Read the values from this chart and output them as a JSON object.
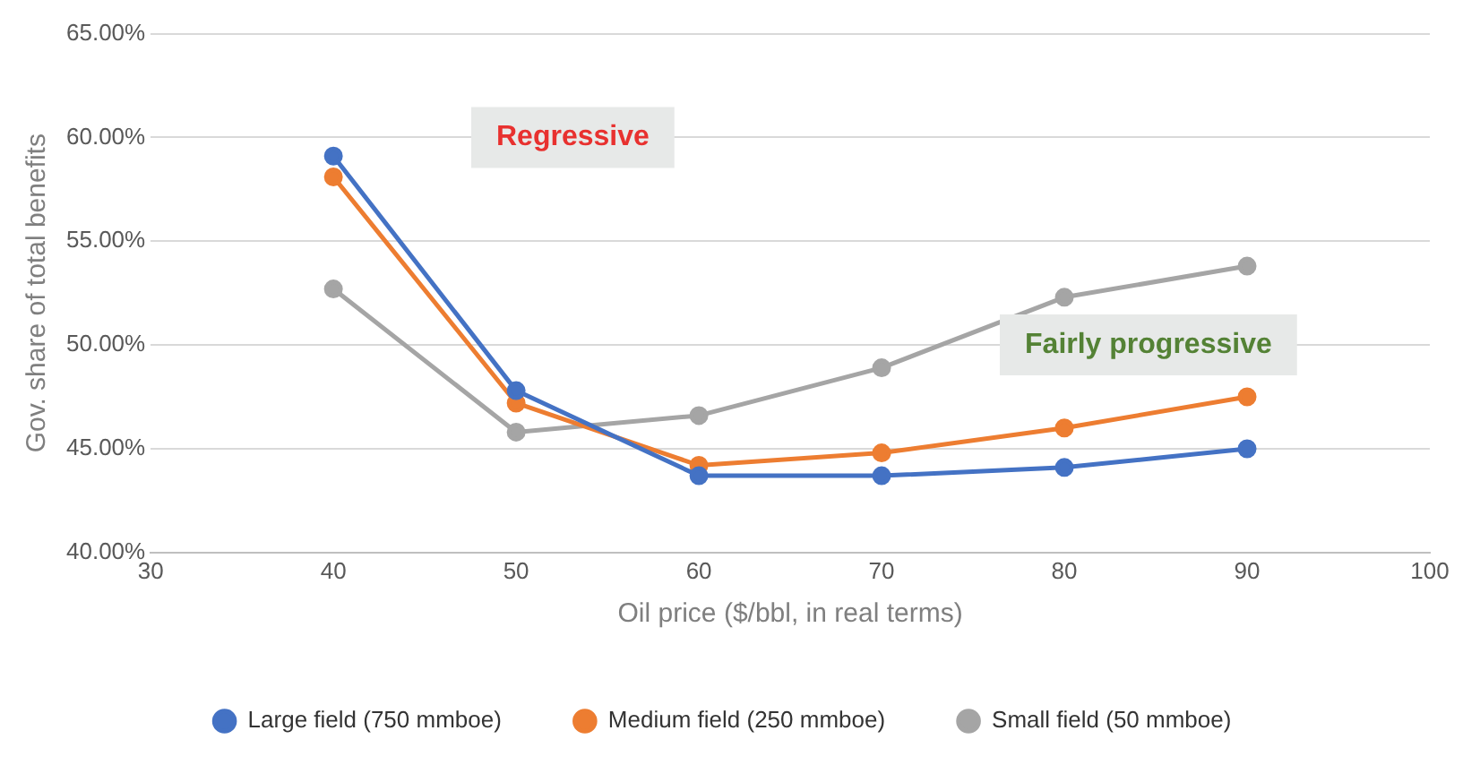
{
  "chart_data": {
    "type": "line",
    "xlabel": "Oil price ($/bbl, in real terms)",
    "ylabel": "Gov. share of total benefits",
    "x": [
      40,
      50,
      60,
      70,
      80,
      90
    ],
    "series": [
      {
        "name": "Large field (750 mmboe)",
        "color": "#4472c4",
        "values": [
          59.1,
          47.8,
          43.7,
          43.7,
          44.1,
          45.0
        ]
      },
      {
        "name": "Medium field (250 mmboe)",
        "color": "#ed7d31",
        "values": [
          58.1,
          47.2,
          44.2,
          44.8,
          46.0,
          47.5
        ]
      },
      {
        "name": "Small field (50 mmboe)",
        "color": "#a5a5a5",
        "values": [
          52.7,
          45.8,
          46.6,
          48.9,
          52.3,
          53.8
        ]
      }
    ],
    "xlim": [
      30,
      100
    ],
    "xticks": [
      30,
      40,
      50,
      60,
      70,
      80,
      90,
      100
    ],
    "ylim": [
      40,
      65
    ],
    "yticks": [
      {
        "value": 40,
        "label": "40.00%"
      },
      {
        "value": 45,
        "label": "45.00%"
      },
      {
        "value": 50,
        "label": "50.00%"
      },
      {
        "value": 55,
        "label": "55.00%"
      },
      {
        "value": 60,
        "label": "60.00%"
      },
      {
        "value": 65,
        "label": "65.00%"
      }
    ],
    "annotations": [
      "Regressive",
      "Fairly progressive"
    ],
    "grid": "y",
    "legend": "bottom",
    "marker": "circle",
    "line_style": "solid"
  }
}
